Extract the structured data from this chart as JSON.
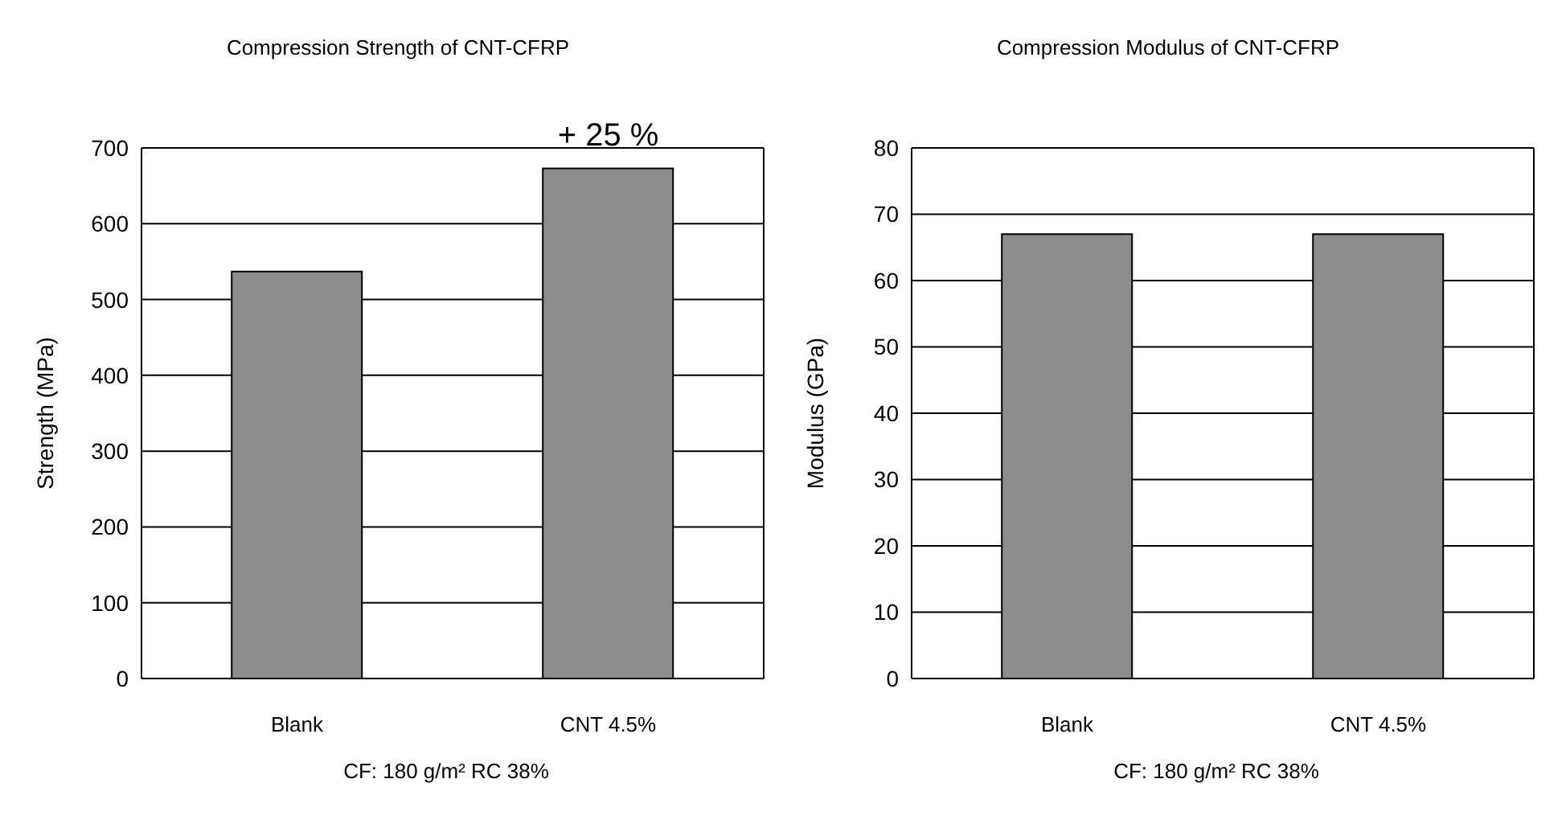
{
  "chart_data": [
    {
      "type": "bar",
      "title": "Compression Strength of CNT-CFRP",
      "xlabel": "CF: 180 g/m² RC 38%",
      "ylabel": "Strength (MPa)",
      "categories": [
        "Blank",
        "CNT 4.5%"
      ],
      "values": [
        537,
        673
      ],
      "color": "#8c8c8c",
      "ylim": [
        0,
        700
      ],
      "yticks": [
        0,
        100,
        200,
        300,
        400,
        500,
        600,
        700
      ],
      "grid": "y",
      "annotations": [
        {
          "text": "+ 25  %",
          "x": "CNT 4.5%",
          "y": 673
        }
      ]
    },
    {
      "type": "bar",
      "title": "Compression Modulus of CNT-CFRP",
      "xlabel": "CF: 180 g/m² RC 38%",
      "ylabel": "Modulus (GPa)",
      "categories": [
        "Blank",
        "CNT 4.5%"
      ],
      "values": [
        67,
        67
      ],
      "color": "#8c8c8c",
      "ylim": [
        0,
        80
      ],
      "yticks": [
        0,
        10,
        20,
        30,
        40,
        50,
        60,
        70,
        80
      ],
      "grid": "y"
    }
  ]
}
